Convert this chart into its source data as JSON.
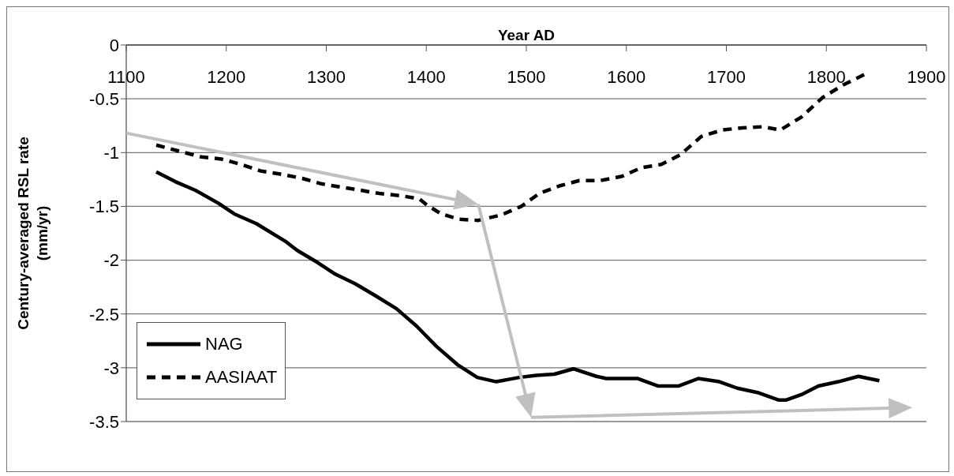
{
  "chart_data": {
    "type": "line",
    "xlabel": "Year AD",
    "ylabel": "Century-averaged RSL rate (mm/yr)",
    "xlim": [
      1100,
      1900
    ],
    "xticks": [
      1100,
      1200,
      1300,
      1400,
      1500,
      1600,
      1700,
      1800,
      1900
    ],
    "ylim": [
      -3.5,
      0
    ],
    "yticks": [
      0,
      -0.5,
      -1,
      -1.5,
      -2,
      -2.5,
      -3,
      -3.5
    ],
    "grid": "y",
    "legend": "bottom left",
    "marker": "none",
    "series": [
      {
        "name": "NAG",
        "color": "#000000",
        "line_style": "solid",
        "x": [
          1130,
          1149,
          1169,
          1192,
          1208,
          1230,
          1260,
          1271,
          1291,
          1309,
          1329,
          1349,
          1370,
          1390,
          1410,
          1431,
          1451,
          1470,
          1493,
          1510,
          1528,
          1547,
          1570,
          1580,
          1611,
          1632,
          1652,
          1672,
          1693,
          1711,
          1731,
          1752,
          1760,
          1775,
          1792,
          1812,
          1832,
          1853
        ],
        "values": [
          -1.18,
          -1.27,
          -1.35,
          -1.47,
          -1.57,
          -1.66,
          -1.83,
          -1.91,
          -2.02,
          -2.13,
          -2.22,
          -2.33,
          -2.45,
          -2.61,
          -2.8,
          -2.97,
          -3.09,
          -3.13,
          -3.09,
          -3.07,
          -3.06,
          -3.01,
          -3.08,
          -3.1,
          -3.1,
          -3.17,
          -3.17,
          -3.1,
          -3.13,
          -3.19,
          -3.23,
          -3.3,
          -3.3,
          -3.25,
          -3.17,
          -3.13,
          -3.08,
          -3.12
        ]
      },
      {
        "name": "AASIAAT",
        "color": "#000000",
        "line_style": "dashed",
        "x": [
          1130,
          1154,
          1175,
          1195,
          1215,
          1234,
          1254,
          1276,
          1295,
          1314,
          1334,
          1353,
          1374,
          1393,
          1401,
          1415,
          1433,
          1452,
          1475,
          1495,
          1513,
          1533,
          1553,
          1574,
          1596,
          1615,
          1635,
          1654,
          1675,
          1696,
          1716,
          1736,
          1754,
          1775,
          1796,
          1817,
          1839
        ],
        "values": [
          -0.93,
          -0.99,
          -1.04,
          -1.06,
          -1.11,
          -1.17,
          -1.2,
          -1.24,
          -1.29,
          -1.32,
          -1.35,
          -1.38,
          -1.4,
          -1.43,
          -1.49,
          -1.57,
          -1.62,
          -1.63,
          -1.58,
          -1.5,
          -1.38,
          -1.31,
          -1.26,
          -1.26,
          -1.22,
          -1.14,
          -1.11,
          -1.02,
          -0.85,
          -0.79,
          -0.77,
          -0.76,
          -0.79,
          -0.67,
          -0.49,
          -0.37,
          -0.27
        ]
      }
    ]
  }
}
